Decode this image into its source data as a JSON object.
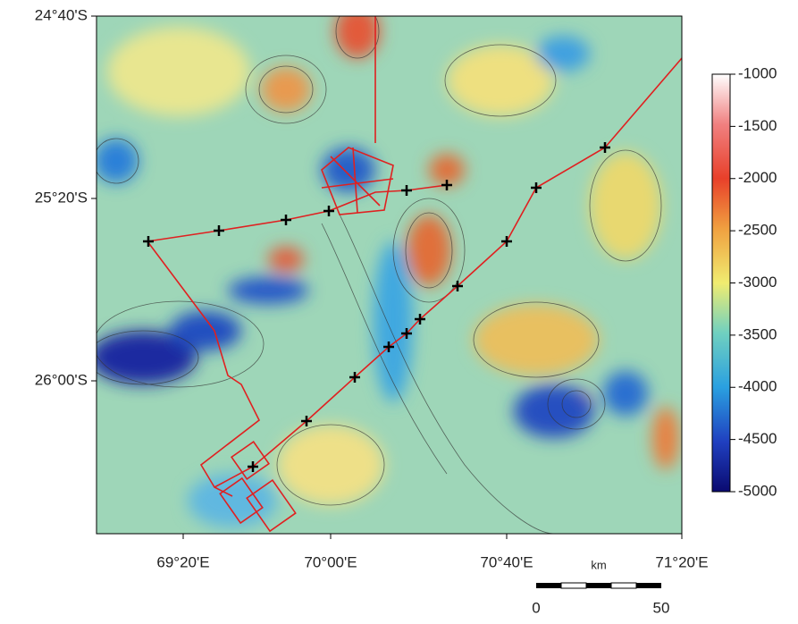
{
  "map": {
    "lat_labels": [
      "24°40'S",
      "25°20'S",
      "26°00'S"
    ],
    "lon_labels": [
      "69°20'E",
      "70°00'E",
      "70°40'E",
      "71°20'E"
    ],
    "colorbar": {
      "lim": [
        -5000,
        -1000
      ],
      "ticks": [
        -1000,
        -1500,
        -2000,
        -2500,
        -3000,
        -3500,
        -4000,
        -4500,
        -5000
      ]
    },
    "scale_bar": {
      "unit": "km",
      "labels": [
        "0",
        "50"
      ]
    }
  }
}
